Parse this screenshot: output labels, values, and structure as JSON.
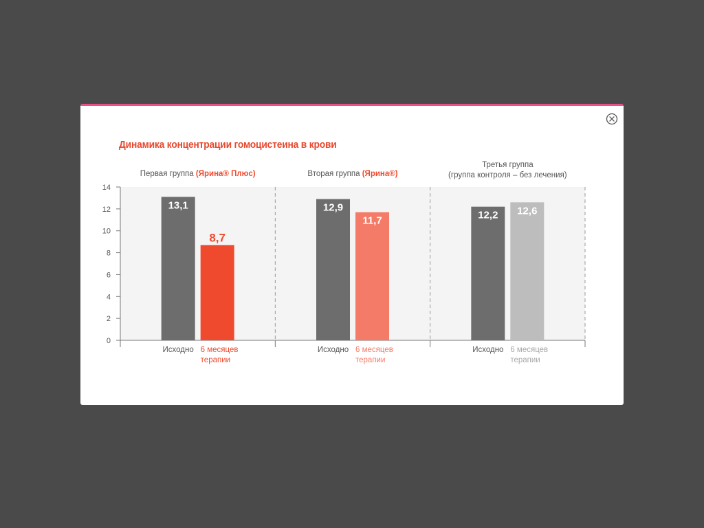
{
  "colors": {
    "background": "#4a4a4a",
    "accent_top": "#e8508a",
    "title": "#e8472d",
    "baseline_bar": "#6d6d6d",
    "group1_after": "#f04a2e",
    "group2_after": "#f47b68",
    "group3_after": "#bdbdbd",
    "plot_bg": "#f4f4f4"
  },
  "close_icon": "close-circle-icon",
  "chart_data": {
    "type": "bar",
    "title": "Динамика концентрации гомоцистеина в крови",
    "ylim": [
      0,
      14
    ],
    "yticks": [
      "0",
      "2",
      "4",
      "6",
      "8",
      "10",
      "12",
      "14"
    ],
    "grid": false,
    "groups": [
      {
        "header": "Первая группа",
        "header_highlight": "(Ярина® Плюс)",
        "header_line2": "",
        "bars": [
          {
            "label": "Исходно",
            "label_line2": "",
            "value": 13.1,
            "value_text": "13,1"
          },
          {
            "label": "6 месяцев",
            "label_line2": "терапии",
            "value": 8.7,
            "value_text": "8,7"
          }
        ]
      },
      {
        "header": "Вторая группа",
        "header_highlight": "(Ярина®)",
        "header_line2": "",
        "bars": [
          {
            "label": "Исходно",
            "label_line2": "",
            "value": 12.9,
            "value_text": "12,9"
          },
          {
            "label": "6 месяцев",
            "label_line2": "терапии",
            "value": 11.7,
            "value_text": "11,7"
          }
        ]
      },
      {
        "header": "Третья группа",
        "header_highlight": "",
        "header_line2": "(группа контроля – без лечения)",
        "bars": [
          {
            "label": "Исходно",
            "label_line2": "",
            "value": 12.2,
            "value_text": "12,2"
          },
          {
            "label": "6 месяцев",
            "label_line2": "терапии",
            "value": 12.6,
            "value_text": "12,6"
          }
        ]
      }
    ]
  }
}
